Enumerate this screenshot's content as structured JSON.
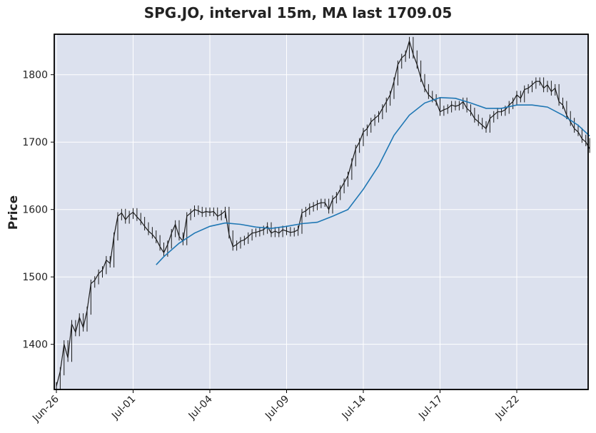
{
  "chart_data": {
    "type": "line",
    "title": "SPG.JO, interval 15m, MA last 1709.05",
    "xlabel": "",
    "ylabel": "Price",
    "categories": [
      "Jun-26",
      "Jul-01",
      "Jul-04",
      "Jul-09",
      "Jul-14",
      "Jul-17",
      "Jul-22"
    ],
    "ylim": [
      1333,
      1860
    ],
    "y_ticks": [
      1400,
      1500,
      1600,
      1700,
      1800
    ],
    "grid": true,
    "colors": {
      "plot_background": "#dce1ee",
      "grid": "#ffffff",
      "price": "#1a1a1a",
      "ma": "#1f77b4"
    },
    "series": [
      {
        "key": "price",
        "style": "candlestick",
        "x": [
          0,
          0.05,
          0.1,
          0.15,
          0.2,
          0.25,
          0.3,
          0.35,
          0.4,
          0.45,
          0.5,
          0.55,
          0.6,
          0.65,
          0.7,
          0.75,
          0.8,
          0.85,
          0.9,
          0.95,
          1.0,
          1.05,
          1.1,
          1.15,
          1.2,
          1.25,
          1.3,
          1.35,
          1.4,
          1.45,
          1.5,
          1.55,
          1.6,
          1.65,
          1.7,
          1.75,
          1.8,
          1.85,
          1.9,
          1.95,
          2.0,
          2.05,
          2.1,
          2.15,
          2.2,
          2.25,
          2.3,
          2.35,
          2.4,
          2.45,
          2.5,
          2.55,
          2.6,
          2.65,
          2.7,
          2.75,
          2.8,
          2.85,
          2.9,
          2.95,
          3.0,
          3.05,
          3.1,
          3.15,
          3.2,
          3.25,
          3.3,
          3.35,
          3.4,
          3.45,
          3.5,
          3.55,
          3.6,
          3.65,
          3.7,
          3.75,
          3.8,
          3.85,
          3.9,
          3.95,
          4.0,
          4.05,
          4.1,
          4.15,
          4.2,
          4.25,
          4.3,
          4.35,
          4.4,
          4.45,
          4.5,
          4.55,
          4.6,
          4.65,
          4.7,
          4.75,
          4.8,
          4.85,
          4.9,
          4.95,
          5.0,
          5.05,
          5.1,
          5.15,
          5.2,
          5.25,
          5.3,
          5.35,
          5.4,
          5.45,
          5.5,
          5.55,
          5.6,
          5.65,
          5.7,
          5.75,
          5.8,
          5.85,
          5.9,
          5.95,
          6.0,
          6.05,
          6.1,
          6.15,
          6.2,
          6.25,
          6.3,
          6.35,
          6.4,
          6.45,
          6.5,
          6.55,
          6.6,
          6.65,
          6.7,
          6.75,
          6.8,
          6.85,
          6.9,
          6.95
        ],
        "values": [
          1338,
          1360,
          1400,
          1380,
          1430,
          1418,
          1440,
          1425,
          1450,
          1490,
          1495,
          1505,
          1510,
          1525,
          1520,
          1560,
          1590,
          1595,
          1585,
          1592,
          1596,
          1589,
          1583,
          1575,
          1568,
          1563,
          1556,
          1545,
          1536,
          1548,
          1565,
          1578,
          1560,
          1553,
          1590,
          1595,
          1600,
          1598,
          1595,
          1597,
          1596,
          1597,
          1590,
          1593,
          1598,
          1563,
          1545,
          1548,
          1553,
          1555,
          1560,
          1565,
          1566,
          1568,
          1570,
          1575,
          1565,
          1568,
          1565,
          1570,
          1568,
          1566,
          1567,
          1570,
          1595,
          1598,
          1603,
          1605,
          1608,
          1610,
          1610,
          1600,
          1615,
          1620,
          1630,
          1640,
          1650,
          1670,
          1690,
          1700,
          1715,
          1720,
          1730,
          1735,
          1740,
          1750,
          1760,
          1770,
          1790,
          1815,
          1825,
          1830,
          1850,
          1830,
          1815,
          1795,
          1780,
          1770,
          1765,
          1760,
          1745,
          1748,
          1750,
          1755,
          1753,
          1755,
          1760,
          1750,
          1745,
          1735,
          1730,
          1725,
          1720,
          1735,
          1740,
          1745,
          1745,
          1748,
          1755,
          1760,
          1770,
          1765,
          1778,
          1780,
          1785,
          1790,
          1790,
          1780,
          1785,
          1775,
          1780,
          1760,
          1755,
          1740,
          1730,
          1720,
          1715,
          1705,
          1700,
          1690
        ]
      },
      {
        "key": "ma",
        "name": "",
        "style": "line",
        "x": [
          1.3,
          1.4,
          1.6,
          1.8,
          2.0,
          2.2,
          2.4,
          2.6,
          2.8,
          3.0,
          3.2,
          3.4,
          3.6,
          3.8,
          4.0,
          4.2,
          4.4,
          4.6,
          4.8,
          5.0,
          5.2,
          5.4,
          5.6,
          5.8,
          6.0,
          6.2,
          6.4,
          6.6,
          6.8,
          6.95
        ],
        "values": [
          1518,
          1530,
          1550,
          1565,
          1575,
          1580,
          1578,
          1574,
          1572,
          1575,
          1579,
          1581,
          1590,
          1600,
          1630,
          1665,
          1710,
          1740,
          1758,
          1766,
          1765,
          1758,
          1750,
          1750,
          1755,
          1755,
          1752,
          1740,
          1725,
          1709
        ]
      }
    ]
  }
}
